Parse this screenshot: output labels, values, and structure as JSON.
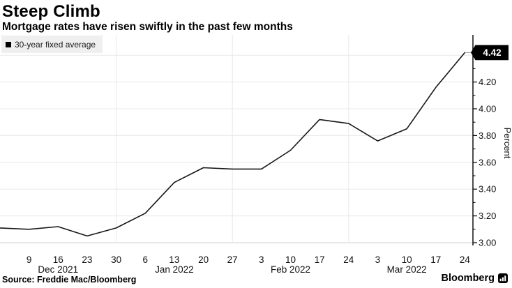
{
  "header": {
    "title": "Steep Climb",
    "subtitle": "Mortgage rates have risen swiftly in the past few months"
  },
  "legend": {
    "swatch_color": "#000000",
    "label": "30-year fixed average"
  },
  "chart_data": {
    "type": "line",
    "title": "Steep Climb",
    "subtitle": "Mortgage rates have risen swiftly in the past few months",
    "ylabel": "Percent",
    "ylim": [
      3.0,
      4.55
    ],
    "grid": true,
    "legend_position": "top-left",
    "line_color": "#161616",
    "grid_color": "#e8e8e8",
    "series": [
      {
        "name": "30-year fixed average",
        "color": "#161616",
        "values": [
          3.11,
          3.1,
          3.12,
          3.05,
          3.11,
          3.22,
          3.45,
          3.56,
          3.55,
          3.55,
          3.69,
          3.92,
          3.89,
          3.76,
          3.85,
          4.16,
          4.42
        ]
      }
    ],
    "x_ticks": [
      {
        "index": 1,
        "label": "9"
      },
      {
        "index": 2,
        "label": "16"
      },
      {
        "index": 3,
        "label": "23"
      },
      {
        "index": 4,
        "label": "30"
      },
      {
        "index": 5,
        "label": "6"
      },
      {
        "index": 6,
        "label": "13"
      },
      {
        "index": 7,
        "label": "20"
      },
      {
        "index": 8,
        "label": "27"
      },
      {
        "index": 9,
        "label": "3"
      },
      {
        "index": 10,
        "label": "10"
      },
      {
        "index": 11,
        "label": "17"
      },
      {
        "index": 12,
        "label": "24"
      },
      {
        "index": 13,
        "label": "3"
      },
      {
        "index": 14,
        "label": "10"
      },
      {
        "index": 15,
        "label": "17"
      },
      {
        "index": 16,
        "label": "24"
      }
    ],
    "month_labels": [
      {
        "index": 2,
        "label": "Dec 2021"
      },
      {
        "index": 6,
        "label": "Jan 2022"
      },
      {
        "index": 10,
        "label": "Feb 2022"
      },
      {
        "index": 14,
        "label": "Mar 2022"
      }
    ],
    "y_ticks": [
      3.0,
      3.2,
      3.4,
      3.6,
      3.8,
      4.0,
      4.2,
      4.4
    ],
    "y_tick_labels": [
      "3.00",
      "3.20",
      "3.40",
      "3.60",
      "3.80",
      "4.00",
      "4.20",
      "4.40"
    ],
    "y_minor_ticks": [
      3.1,
      3.3,
      3.5,
      3.7,
      3.9,
      4.1,
      4.3
    ],
    "vgrid_tick_indices": [
      4,
      8,
      12
    ],
    "last_value_label": "4.42"
  },
  "footer": {
    "source": "Source: Freddie Mac/Bloomberg",
    "brand": "Bloomberg"
  }
}
